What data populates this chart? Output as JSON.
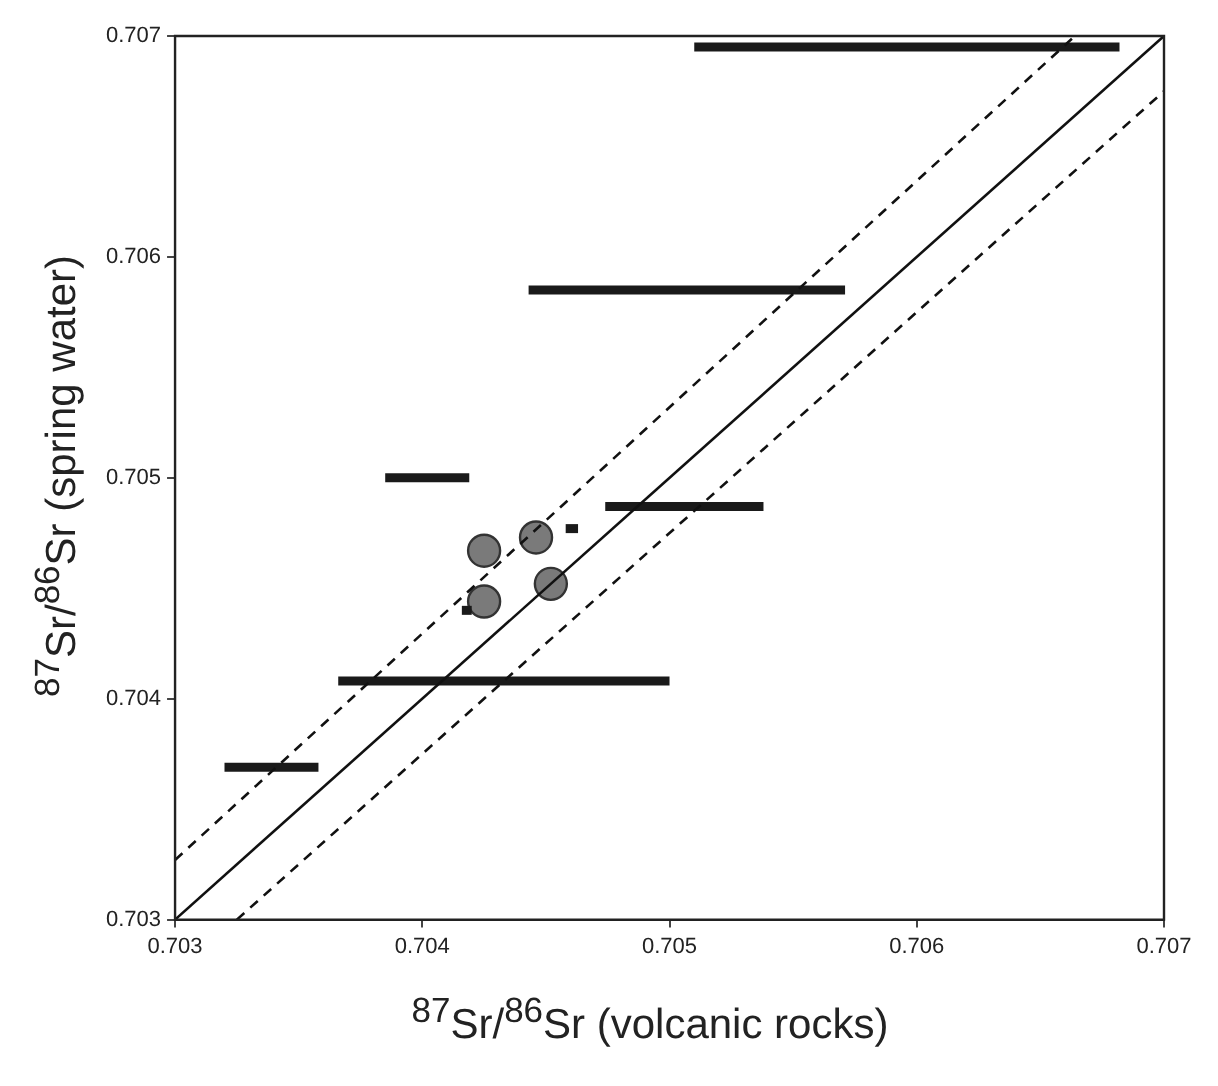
{
  "chart_data": {
    "type": "line",
    "xlabel": "$^{87}$Sr/$^{86}$Sr (volcanic rocks)",
    "ylabel": "$^{87}$Sr/$^{86}$Sr (spring water)",
    "xlim": [
      0.703,
      0.707
    ],
    "xticks": [
      0.703,
      0.704,
      0.705,
      0.706,
      0.707
    ],
    "ylim": [
      0.703,
      0.707
    ],
    "yticks": [
      0.703,
      0.704,
      0.705,
      0.706,
      0.707
    ],
    "grid": false,
    "legend": false,
    "series": [
      {
        "color": "#111111",
        "line_style": "solid",
        "marker": "none",
        "x": [
          0.703,
          0.707
        ],
        "values": [
          0.703,
          0.707
        ]
      },
      {
        "color": "#111111",
        "line_style": "dashed",
        "marker": "none",
        "x": [
          0.703,
          0.70664
        ],
        "values": [
          0.70327,
          0.707
        ]
      },
      {
        "color": "#111111",
        "line_style": "dashed",
        "marker": "none",
        "x": [
          0.70325,
          0.707
        ],
        "values": [
          0.703,
          0.70675
        ]
      },
      {
        "color": "#1a1a1a",
        "line_style": "solid",
        "marker": "none",
        "x": [
          0.7051,
          0.70682
        ],
        "values": [
          0.70695,
          0.70695
        ]
      },
      {
        "color": "#1a1a1a",
        "line_style": "solid",
        "marker": "none",
        "x": [
          0.70443,
          0.70571
        ],
        "values": [
          0.70585,
          0.70585
        ]
      },
      {
        "color": "#1a1a1a",
        "line_style": "solid",
        "marker": "none",
        "x": [
          0.70385,
          0.70419
        ],
        "values": [
          0.705,
          0.705
        ]
      },
      {
        "color": "#1a1a1a",
        "line_style": "solid",
        "marker": "none",
        "x": [
          0.70474,
          0.70538
        ],
        "values": [
          0.70487,
          0.70487
        ]
      },
      {
        "color": "#1a1a1a",
        "line_style": "solid",
        "marker": "none",
        "x": [
          0.70366,
          0.705
        ],
        "values": [
          0.70408,
          0.70408
        ]
      },
      {
        "color": "#1a1a1a",
        "line_style": "solid",
        "marker": "none",
        "x": [
          0.7032,
          0.70358
        ],
        "values": [
          0.70369,
          0.70369
        ]
      },
      {
        "color": "#1a1a1a",
        "line_style": "solid",
        "marker": "none",
        "x": [
          0.70458,
          0.70463
        ],
        "values": [
          0.70477,
          0.70477
        ]
      },
      {
        "color": "#1a1a1a",
        "line_style": "solid",
        "marker": "none",
        "x": [
          0.70416,
          0.7042
        ],
        "values": [
          0.7044,
          0.7044
        ]
      },
      {
        "type": "scatter",
        "color": "#7a7a7a",
        "marker": "circle",
        "x": [
          0.70425,
          0.70446,
          0.70452,
          0.70425
        ],
        "values": [
          0.70467,
          0.70473,
          0.70452,
          0.70444
        ]
      }
    ]
  }
}
